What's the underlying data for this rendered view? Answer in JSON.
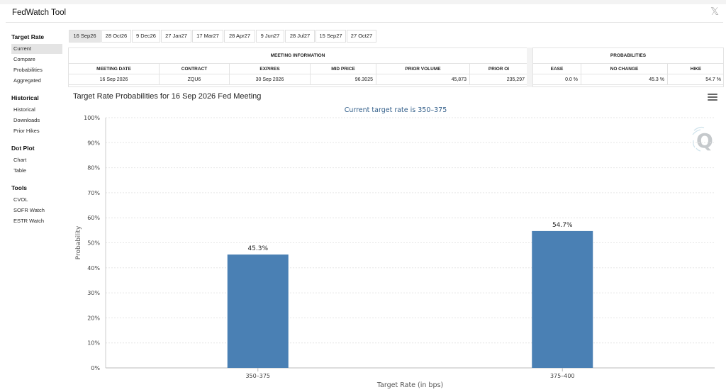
{
  "app": {
    "title": "FedWatch Tool",
    "close_glyph": "𝕏"
  },
  "sidebar": {
    "groups": [
      {
        "title": "Target Rate",
        "items": [
          "Current",
          "Compare",
          "Probabilities",
          "Aggregated"
        ]
      },
      {
        "title": "Historical",
        "items": [
          "Historical",
          "Downloads",
          "Prior Hikes"
        ]
      },
      {
        "title": "Dot Plot",
        "items": [
          "Chart",
          "Table"
        ]
      },
      {
        "title": "Tools",
        "items": [
          "CVOL",
          "SOFR Watch",
          "ESTR Watch"
        ]
      }
    ],
    "active_item": "Current"
  },
  "tabs": [
    "16 Sep26",
    "28 Oct26",
    "9 Dec26",
    "27 Jan27",
    "17 Mar27",
    "28 Apr27",
    "9 Jun27",
    "28 Jul27",
    "15 Sep27",
    "27 Oct27"
  ],
  "active_tab": "16 Sep26",
  "meeting_info": {
    "title": "MEETING INFORMATION",
    "headers": [
      "MEETING DATE",
      "CONTRACT",
      "EXPIRES",
      "MID PRICE",
      "PRIOR VOLUME",
      "PRIOR OI"
    ],
    "row": [
      "16 Sep 2026",
      "ZQU6",
      "30 Sep 2026",
      "96.3025",
      "45,873",
      "235,297"
    ]
  },
  "probabilities": {
    "title": "PROBABILITIES",
    "headers": [
      "EASE",
      "NO CHANGE",
      "HIKE"
    ],
    "row": [
      "0.0 %",
      "45.3 %",
      "54.7 %"
    ]
  },
  "chart": {
    "menu_icon": "hamburger-menu-icon",
    "logo": "quikstrike-q-logo"
  },
  "chart_data": {
    "type": "bar",
    "title": "Target Rate Probabilities for 16 Sep 2026 Fed Meeting",
    "subtitle": "Current target rate is 350–375",
    "xlabel": "Target Rate (in bps)",
    "ylabel": "Probability",
    "categories": [
      "350–375",
      "375–400"
    ],
    "values": [
      45.3,
      54.7
    ],
    "data_labels": [
      "45.3%",
      "54.7%"
    ],
    "ylim": [
      0,
      100
    ],
    "yticks": [
      "0%",
      "10%",
      "20%",
      "30%",
      "40%",
      "50%",
      "60%",
      "70%",
      "80%",
      "90%",
      "100%"
    ],
    "bar_color": "#4a80b4",
    "grid": true
  }
}
